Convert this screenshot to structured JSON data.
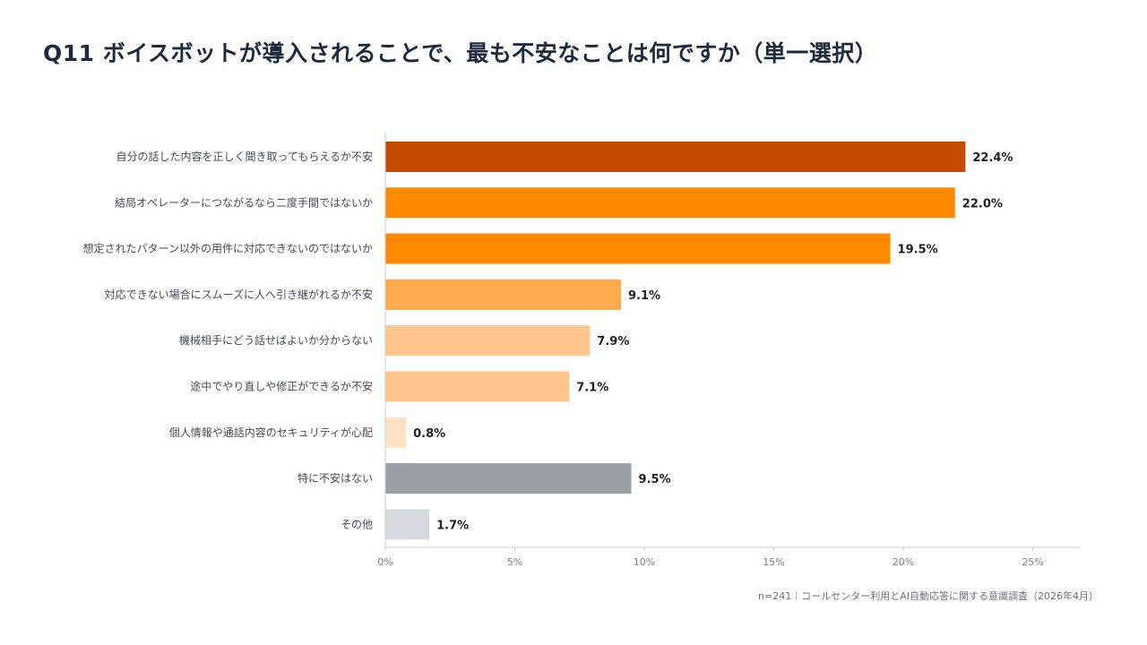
{
  "page": {
    "title": "Q11 ボイスボットが導入されることで、最も不安なことは何ですか（単一選択）",
    "footnote": "n=241｜コールセンター利用とAI自動応答に関する意識調査（2026年4月）"
  },
  "chart_data": {
    "type": "bar",
    "orientation": "horizontal",
    "title": "Q11 ボイスボットが導入されることで、最も不安なことは何ですか（単一選択）",
    "xlabel": "",
    "ylabel": "",
    "xlim": [
      0,
      27
    ],
    "grid": false,
    "legend": "none",
    "x_ticks": [
      {
        "value": 0,
        "label": "0%"
      },
      {
        "value": 5,
        "label": "5%"
      },
      {
        "value": 10,
        "label": "10%"
      },
      {
        "value": 15,
        "label": "15%"
      },
      {
        "value": 20,
        "label": "20%"
      },
      {
        "value": 25,
        "label": "25%"
      }
    ],
    "categories": [
      "自分の話した内容を正しく聞き取ってもらえるか不安",
      "結局オペレーターにつながるなら二度手間ではないか",
      "想定されたパターン以外の用件に対応できないのではないか",
      "対応できない場合にスムーズに人へ引き継がれるか不安",
      "機械相手にどう話せばよいか分からない",
      "途中でやり直しや修正ができるか不安",
      "個人情報や通話内容のセキュリティが心配",
      "特に不安はない",
      "その他"
    ],
    "values": [
      22.4,
      22.0,
      19.5,
      9.1,
      7.9,
      7.1,
      0.8,
      9.5,
      1.7
    ],
    "value_labels": [
      "22.4%",
      "22.0%",
      "19.5%",
      "9.1%",
      "7.9%",
      "7.1%",
      "0.8%",
      "9.5%",
      "1.7%"
    ],
    "colors": [
      "#c44a00",
      "#ff8a00",
      "#ff8a00",
      "#ffaa4d",
      "#ffc58a",
      "#ffc58a",
      "#ffe2c4",
      "#9a9fa8",
      "#d6d9df"
    ]
  }
}
